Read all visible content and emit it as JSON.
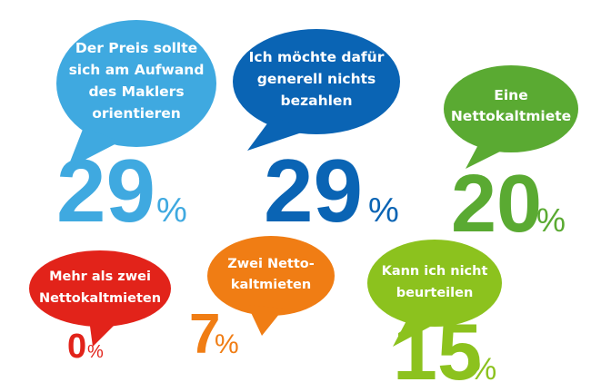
{
  "chart_data": {
    "type": "infographic",
    "unit": "%",
    "items": [
      {
        "label_lines": [
          "Der Preis sollte",
          "sich am Aufwand",
          "des Maklers",
          "orientieren"
        ],
        "value": 29,
        "color": "#3fa9e0"
      },
      {
        "label_lines": [
          "Ich möchte dafür",
          "generell nichts",
          "bezahlen"
        ],
        "value": 29,
        "color": "#0a64b4"
      },
      {
        "label_lines": [
          "Eine",
          "Nettokaltmiete"
        ],
        "value": 20,
        "color": "#5aaa32"
      },
      {
        "label_lines": [
          "Mehr als zwei",
          "Nettokaltmieten"
        ],
        "value": 0,
        "color": "#e2231a"
      },
      {
        "label_lines": [
          "Zwei Netto-",
          "kaltmieten"
        ],
        "value": 7,
        "color": "#f07d14"
      },
      {
        "label_lines": [
          "Kann ich nicht",
          "beurteilen"
        ],
        "value": 15,
        "color": "#8cc21e"
      }
    ]
  }
}
